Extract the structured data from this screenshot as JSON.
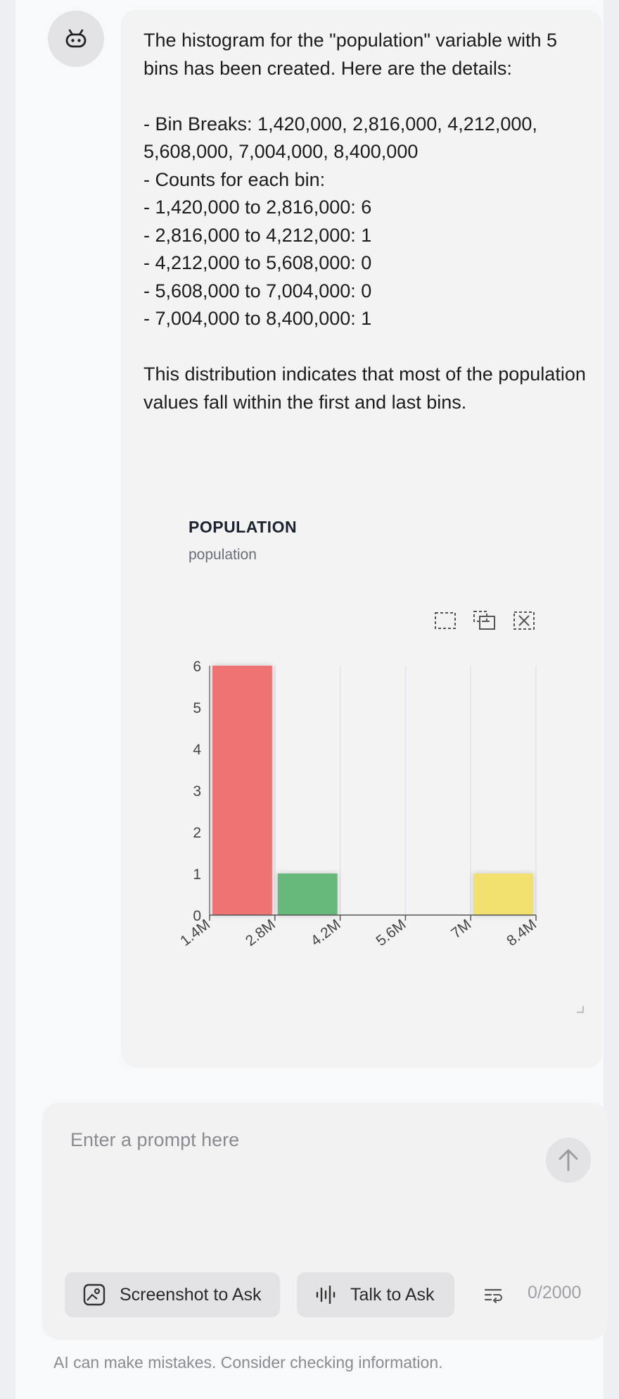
{
  "message": {
    "text": "The histogram for the \"population\" variable with 5 bins has been created. Here are the details:\n\n- Bin Breaks: 1,420,000, 2,816,000, 4,212,000, 5,608,000, 7,004,000, 8,400,000\n- Counts for each bin:\n- 1,420,000 to 2,816,000: 6\n- 2,816,000 to 4,212,000: 1\n- 4,212,000 to 5,608,000: 0\n- 5,608,000 to 7,004,000: 0\n- 7,004,000 to 8,400,000: 1\n\nThis distribution indicates that most of the population values fall within the first and last bins."
  },
  "chart_data": {
    "type": "bar",
    "title": "POPULATION",
    "subtitle": "population",
    "bins": [
      {
        "x0": 1420000,
        "x1": 2816000,
        "count": 6,
        "color": "#ee7372"
      },
      {
        "x0": 2816000,
        "x1": 4212000,
        "count": 1,
        "color": "#66b97a"
      },
      {
        "x0": 4212000,
        "x1": 5608000,
        "count": 0,
        "color": "#66b97a"
      },
      {
        "x0": 5608000,
        "x1": 7004000,
        "count": 0,
        "color": "#66b97a"
      },
      {
        "x0": 7004000,
        "x1": 8400000,
        "count": 1,
        "color": "#f2e06f"
      }
    ],
    "x_ticks": [
      {
        "value": 1420000,
        "label": "1.4M"
      },
      {
        "value": 2816000,
        "label": "2.8M"
      },
      {
        "value": 4212000,
        "label": "4.2M"
      },
      {
        "value": 5608000,
        "label": "5.6M"
      },
      {
        "value": 7004000,
        "label": "7M"
      },
      {
        "value": 8400000,
        "label": "8.4M"
      }
    ],
    "y_ticks": [
      0,
      1,
      2,
      3,
      4,
      5,
      6
    ],
    "xlim": [
      1420000,
      8400000
    ],
    "ylim": [
      0,
      6
    ],
    "grid": "vertical",
    "toolbar": [
      "select-zoom-icon",
      "zoom-back-icon",
      "reset-zoom-icon"
    ]
  },
  "composer": {
    "placeholder": "Enter a prompt here",
    "screenshot_label": "Screenshot to Ask",
    "talk_label": "Talk to Ask",
    "counter": "0/2000"
  },
  "footer": {
    "disclaimer": "AI can make mistakes. Consider checking information."
  }
}
